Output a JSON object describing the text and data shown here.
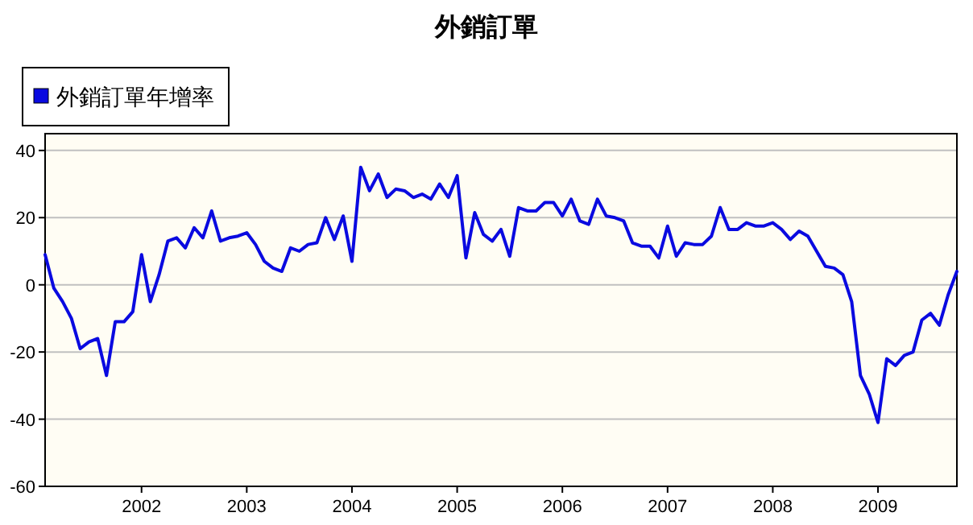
{
  "chart_data": {
    "type": "line",
    "title": "外銷訂單",
    "x": [
      "2001-02",
      "2001-03",
      "2001-04",
      "2001-05",
      "2001-06",
      "2001-07",
      "2001-08",
      "2001-09",
      "2001-10",
      "2001-11",
      "2001-12",
      "2002-01",
      "2002-02",
      "2002-03",
      "2002-04",
      "2002-05",
      "2002-06",
      "2002-07",
      "2002-08",
      "2002-09",
      "2002-10",
      "2002-11",
      "2002-12",
      "2003-01",
      "2003-02",
      "2003-03",
      "2003-04",
      "2003-05",
      "2003-06",
      "2003-07",
      "2003-08",
      "2003-09",
      "2003-10",
      "2003-11",
      "2003-12",
      "2004-01",
      "2004-02",
      "2004-03",
      "2004-04",
      "2004-05",
      "2004-06",
      "2004-07",
      "2004-08",
      "2004-09",
      "2004-10",
      "2004-11",
      "2004-12",
      "2005-01",
      "2005-02",
      "2005-03",
      "2005-04",
      "2005-05",
      "2005-06",
      "2005-07",
      "2005-08",
      "2005-09",
      "2005-10",
      "2005-11",
      "2005-12",
      "2006-01",
      "2006-02",
      "2006-03",
      "2006-04",
      "2006-05",
      "2006-06",
      "2006-07",
      "2006-08",
      "2006-09",
      "2006-10",
      "2006-11",
      "2006-12",
      "2007-01",
      "2007-02",
      "2007-03",
      "2007-04",
      "2007-05",
      "2007-06",
      "2007-07",
      "2007-08",
      "2007-09",
      "2007-10",
      "2007-11",
      "2007-12",
      "2008-01",
      "2008-02",
      "2008-03",
      "2008-04",
      "2008-05",
      "2008-06",
      "2008-07",
      "2008-08",
      "2008-09",
      "2008-10",
      "2008-11",
      "2008-12",
      "2009-01",
      "2009-02",
      "2009-03",
      "2009-04",
      "2009-05",
      "2009-06",
      "2009-07",
      "2009-08",
      "2009-09",
      "2009-10"
    ],
    "series": [
      {
        "name": "外銷訂單年增率",
        "color": "#0a0ae0",
        "values": [
          9,
          -1,
          -5,
          -10,
          -19,
          -17,
          -16,
          -27,
          -11,
          -11,
          -8,
          9,
          -5,
          3,
          13,
          14,
          11,
          17,
          14,
          22,
          13,
          14,
          14.5,
          15.5,
          12,
          7,
          5,
          4,
          11,
          10,
          12,
          12.5,
          20,
          13.5,
          20.5,
          7,
          35,
          28,
          33,
          26,
          28.5,
          28,
          26,
          27,
          25.5,
          30,
          26,
          32.5,
          8,
          21.5,
          15,
          13,
          16.5,
          8.5,
          23,
          22,
          22,
          24.5,
          24.5,
          20.5,
          25.5,
          19,
          18,
          25.5,
          20.5,
          20,
          19,
          12.5,
          11.5,
          11.5,
          8,
          17.5,
          8.5,
          12.5,
          12,
          12,
          14.5,
          23,
          16.5,
          16.5,
          18.5,
          17.5,
          17.5,
          18.5,
          16.5,
          13.5,
          16,
          14.5,
          10,
          5.5,
          5,
          3,
          -5,
          -27,
          -32.5,
          -41,
          -22,
          -24,
          -21,
          -20,
          -10.5,
          -8.5,
          -12,
          -3,
          4
        ]
      }
    ],
    "xlim": [
      "2001-02",
      "2009-10"
    ],
    "xticks": [
      "2002",
      "2003",
      "2004",
      "2005",
      "2006",
      "2007",
      "2008",
      "2009"
    ],
    "ylim": [
      -60,
      45
    ],
    "yticks": [
      -60,
      -40,
      -20,
      0,
      20,
      40
    ],
    "grid": "y",
    "legend": "top left"
  }
}
